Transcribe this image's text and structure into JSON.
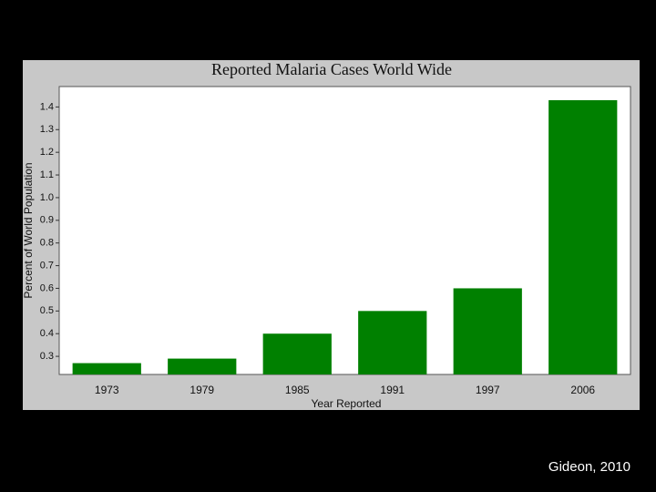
{
  "chart_data": {
    "type": "bar",
    "title": "Reported Malaria Cases World Wide",
    "x_label": "Year Reported",
    "y_label": "Percent of World Population",
    "categories": [
      "1973",
      "1979",
      "1985",
      "1991",
      "1997",
      "2006"
    ],
    "values": [
      0.27,
      0.29,
      0.4,
      0.5,
      0.6,
      1.43
    ],
    "color": "#008000",
    "ylim": [
      0.22,
      1.49
    ],
    "yticks": [
      0.3,
      0.4,
      0.5,
      0.6,
      0.7,
      0.8,
      0.9,
      {
        "value": 1,
        "label": "1.0"
      },
      1.1,
      1.2,
      1.3,
      1.4
    ],
    "grid": false
  },
  "source": "Gideon, 2010"
}
